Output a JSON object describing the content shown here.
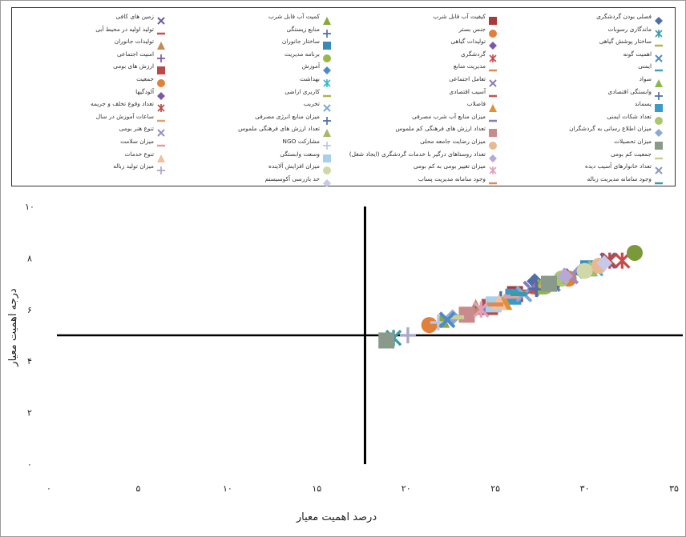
{
  "chart_data": {
    "type": "scatter",
    "xlabel": "درصد اهمیت معیار",
    "ylabel": "درجه اهمیت معیار",
    "xlim": [
      0,
      35
    ],
    "ylim": [
      0,
      10
    ],
    "x_ticks": [
      "۰",
      "۵",
      "۱۰",
      "۱۵",
      "۲۰",
      "۲۵",
      "۳۰",
      "۳۵"
    ],
    "y_ticks": [
      "۰",
      "۲",
      "۴",
      "۶",
      "۸",
      "۱۰"
    ],
    "divider_x": 17.7,
    "divider_y": 5.0,
    "legend_position": "top",
    "series": [
      {
        "name": "فصلی بودن گردشگری",
        "marker": "diamond",
        "color": "#4f6ea8",
        "x": 27.2,
        "y": 7.1
      },
      {
        "name": "کیفیت آب قابل شرب",
        "marker": "square",
        "color": "#a83a3a",
        "x": 26.1,
        "y": 6.6
      },
      {
        "name": "کمیت آب قابل شرب",
        "marker": "triangle",
        "color": "#8aa83a",
        "x": 22.0,
        "y": 5.6
      },
      {
        "name": "زمین های کافی",
        "marker": "x",
        "color": "#6e5aa0",
        "x": 31.3,
        "y": 7.9
      },
      {
        "name": "ماندگاری رسوبات",
        "marker": "asterisk",
        "color": "#3a9aa8",
        "x": 19.3,
        "y": 4.9
      },
      {
        "name": "جنس بستر",
        "marker": "circle",
        "color": "#e0803a",
        "x": 21.3,
        "y": 5.4
      },
      {
        "name": "منابع زیستگی",
        "marker": "plus",
        "color": "#4f6ea8",
        "x": 25.3,
        "y": 6.4
      },
      {
        "name": "تولید اولیه در محیط آبی",
        "marker": "dash",
        "color": "#c85050",
        "x": 27.6,
        "y": 7.0
      },
      {
        "name": "ساختار پوشش گیاهی",
        "marker": "dash",
        "color": "#a8b850",
        "x": 23.6,
        "y": 6.0
      },
      {
        "name": "تولیدات گیاهی",
        "marker": "diamond",
        "color": "#7a5aa8",
        "x": 29.0,
        "y": 7.3
      },
      {
        "name": "ساختار جانوران",
        "marker": "square",
        "color": "#3a8ab8",
        "x": 30.2,
        "y": 7.6
      },
      {
        "name": "تولیدات جانوران",
        "marker": "triangle",
        "color": "#c88a50",
        "x": 23.9,
        "y": 6.1
      },
      {
        "name": "اهمیت گونه",
        "marker": "x",
        "color": "#4f8ac8",
        "x": 28.2,
        "y": 7.0
      },
      {
        "name": "گردشگری",
        "marker": "asterisk",
        "color": "#c84a4a",
        "x": 32.1,
        "y": 7.9
      },
      {
        "name": "برنامه مدیریت",
        "marker": "circle",
        "color": "#9ab84a",
        "x": 27.8,
        "y": 6.9
      },
      {
        "name": "امنیت اجتماعی",
        "marker": "plus",
        "color": "#7a5aa8",
        "x": 24.3,
        "y": 6.1
      },
      {
        "name": "ایمنی",
        "marker": "dash",
        "color": "#3aa8b8",
        "x": 29.5,
        "y": 7.4
      },
      {
        "name": "مدیریت منابع",
        "marker": "dash",
        "color": "#e08a50",
        "x": 25.6,
        "y": 6.4
      },
      {
        "name": "آموزش",
        "marker": "diamond",
        "color": "#4f8ac8",
        "x": 29.8,
        "y": 7.5
      },
      {
        "name": "ارزش های بومی",
        "marker": "square",
        "color": "#b84a4a",
        "x": 24.7,
        "y": 6.1
      },
      {
        "name": "سواد",
        "marker": "triangle",
        "color": "#8ab84a",
        "x": 27.4,
        "y": 6.9
      },
      {
        "name": "تعامل اجتماعی",
        "marker": "x",
        "color": "#8a7ab8",
        "x": 27.0,
        "y": 6.8
      },
      {
        "name": "بهداشت",
        "marker": "asterisk",
        "color": "#3ab8c8",
        "x": 30.6,
        "y": 7.6
      },
      {
        "name": "جمعیت",
        "marker": "circle",
        "color": "#e0803a",
        "x": 29.1,
        "y": 7.2
      },
      {
        "name": "وابستگی اقتصادی",
        "marker": "plus",
        "color": "#4f6ea8",
        "x": 31.0,
        "y": 7.8
      },
      {
        "name": "آسیب اقتصادی",
        "marker": "dash",
        "color": "#c85050",
        "x": 26.9,
        "y": 6.7
      },
      {
        "name": "کاربری اراضی",
        "marker": "dash",
        "color": "#a8b850",
        "x": 28.1,
        "y": 7.0
      },
      {
        "name": "آلودگیها",
        "marker": "diamond",
        "color": "#7a5aa8",
        "x": 28.5,
        "y": 7.1
      },
      {
        "name": "پسماند",
        "marker": "square",
        "color": "#3a9ac8",
        "x": 26.0,
        "y": 6.5
      },
      {
        "name": "فاضلاب",
        "marker": "triangle",
        "color": "#e0903a",
        "x": 25.5,
        "y": 6.3
      },
      {
        "name": "تخریب",
        "marker": "x",
        "color": "#7aa8d8",
        "x": 26.6,
        "y": 6.6
      },
      {
        "name": "تعداد وقوع تخلف و جریمه",
        "marker": "asterisk",
        "color": "#b84a4a",
        "x": 31.4,
        "y": 7.9
      },
      {
        "name": "تعداد شکات ایمنی",
        "marker": "circle",
        "color": "#a8c86a",
        "x": 28.7,
        "y": 7.2
      },
      {
        "name": "میزان منابع آب شرب مصرفی",
        "marker": "dash",
        "color": "#8a7ab8",
        "x": 24.5,
        "y": 6.0
      },
      {
        "name": "میزان منابع انرژی مصرفی",
        "marker": "plus",
        "color": "#4f6ea8",
        "x": 27.3,
        "y": 6.8
      },
      {
        "name": "ساعات آموزش در سال",
        "marker": "dash",
        "color": "#e0a070",
        "x": 27.9,
        "y": 6.9
      },
      {
        "name": "میزان اطلاع رسانی به گردشگران",
        "marker": "diamond",
        "color": "#8aa8d8",
        "x": 22.6,
        "y": 5.7
      },
      {
        "name": "تعداد ارزش های فرهنگی کم ملموس",
        "marker": "square",
        "color": "#c88a8a",
        "x": 23.4,
        "y": 5.8
      },
      {
        "name": "تعداد ارزش های فرهنگی ملموس",
        "marker": "triangle",
        "color": "#a8b86a",
        "x": 30.3,
        "y": 7.6
      },
      {
        "name": "تنوع هنر بومی",
        "marker": "x",
        "color": "#9a8ac8",
        "x": 29.2,
        "y": 7.3
      },
      {
        "name": "میزان تحصیلات",
        "marker": "square",
        "color": "#8a9a8a",
        "x": 28.0,
        "y": 7.0
      },
      {
        "name": "میزان رضایت جامعه محلی",
        "marker": "circle",
        "color": "#e8b890",
        "x": 30.8,
        "y": 7.7
      },
      {
        "name": "مشارکت NGO",
        "marker": "plus",
        "color": "#b8c8e8",
        "x": 21.8,
        "y": 5.5
      },
      {
        "name": "میزان سلامت",
        "marker": "dash",
        "color": "#e0a0a0",
        "x": 25.9,
        "y": 6.5
      },
      {
        "name": "جمعیت کم بومی",
        "marker": "dash",
        "color": "#c8d090",
        "x": 22.8,
        "y": 5.7
      },
      {
        "name": "تعداد روستاهای درگیر با خدمات گردشگری (ایجاد شغل)",
        "marker": "diamond",
        "color": "#b8a8d8",
        "x": 28.9,
        "y": 7.3
      },
      {
        "name": "وسعت وابستگی",
        "marker": "square",
        "color": "#a8d0e8",
        "x": 24.9,
        "y": 6.2
      },
      {
        "name": "تنوع خدمات",
        "marker": "triangle",
        "color": "#f0c0a0",
        "x": 25.2,
        "y": 6.3
      },
      {
        "name": "تعداد خانوارهای آسیب دیده",
        "marker": "x",
        "color": "#8a9ab8",
        "x": 18.9,
        "y": 4.8
      },
      {
        "name": "میزان تغییر بومی به کم بومی",
        "marker": "asterisk",
        "color": "#e0a0b8",
        "x": 24.2,
        "y": 6.0
      },
      {
        "name": "میزان افزایش آلاینده",
        "marker": "circle",
        "color": "#d0d8a8",
        "x": 30.0,
        "y": 7.5
      },
      {
        "name": "میزان تولید زباله",
        "marker": "plus",
        "color": "#a8a8c8",
        "x": 20.1,
        "y": 5.0
      },
      {
        "name": "وجود سامانه مدیریت زباله",
        "marker": "dash",
        "color": "#3a9aa8",
        "x": 26.3,
        "y": 6.6
      },
      {
        "name": "وجود سامانه مدیریت پساب",
        "marker": "dash",
        "color": "#e08a50",
        "x": 25.0,
        "y": 6.2
      },
      {
        "name": "حد بازرسی آکوسیستم",
        "marker": "diamond",
        "color": "#c8c8e8",
        "x": 31.1,
        "y": 7.8
      },
      {
        "name": "",
        "marker": "x",
        "color": "#4f8ac8",
        "x": 22.3,
        "y": 5.6
      },
      {
        "name": "",
        "marker": "square",
        "color": "#8a9a8a",
        "x": 18.9,
        "y": 4.8
      },
      {
        "name": "",
        "marker": "circle",
        "color": "#7a9a3a",
        "x": 32.8,
        "y": 8.2
      }
    ]
  }
}
